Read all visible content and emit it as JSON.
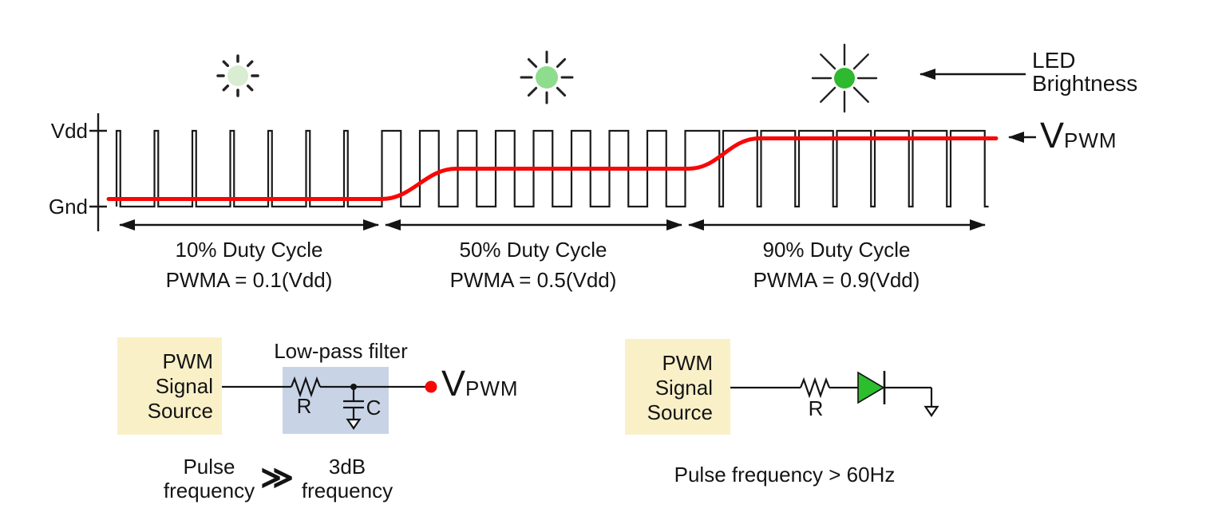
{
  "colors": {
    "red": "#f80707",
    "ink": "#1a1a1a",
    "source_box": "#faf0c8",
    "filter_box": "#c8d4e6",
    "led_green": "#2dbe2d",
    "sun_low": "#d8edd2",
    "sun_mid": "#8edc8e",
    "sun_high": "#2eb92e"
  },
  "led_brightness": {
    "line1": "LED",
    "line2": "Brightness"
  },
  "waveform": {
    "vdd": "Vdd",
    "gnd": "Gnd",
    "vpwm_main": "V",
    "vpwm_sub": "PWM",
    "sections": [
      {
        "duty": 0.1,
        "periods": 7,
        "label": "10% Duty Cycle",
        "formula": "PWMA = 0.1(Vdd)"
      },
      {
        "duty": 0.5,
        "periods": 8,
        "label": "50% Duty Cycle",
        "formula": "PWMA = 0.5(Vdd)"
      },
      {
        "duty": 0.9,
        "periods": 8,
        "label": "90% Duty Cycle",
        "formula": "PWMA = 0.9(Vdd)"
      }
    ]
  },
  "filter_circuit": {
    "source": [
      "PWM",
      "Signal",
      "Source"
    ],
    "filter_label": "Low-pass filter",
    "r_label": "R",
    "c_label": "C",
    "out_main": "V",
    "out_sub": "PWM",
    "cond_left1": "Pulse",
    "cond_left2": "frequency",
    "cond_op": "≫",
    "cond_right1": "3dB",
    "cond_right2": "frequency"
  },
  "led_circuit": {
    "source": [
      "PWM",
      "Signal",
      "Source"
    ],
    "r_label": "R",
    "condition": "Pulse frequency > 60Hz"
  }
}
